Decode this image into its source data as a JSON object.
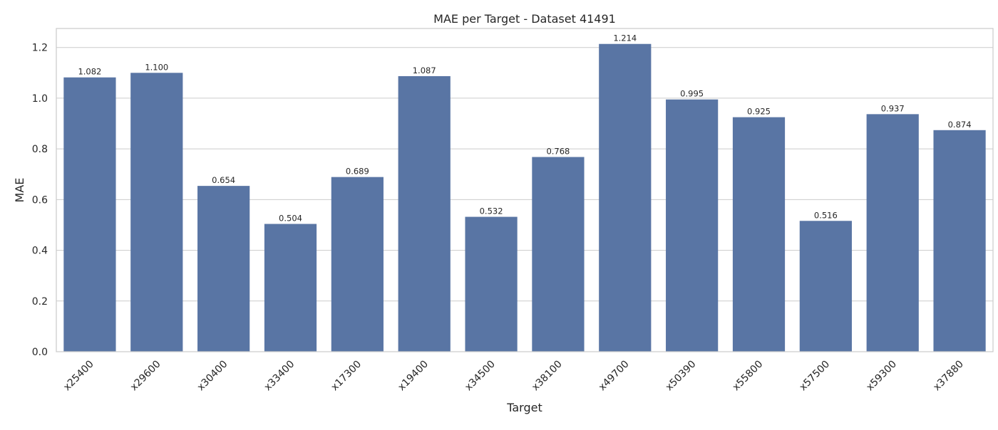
{
  "chart_data": {
    "type": "bar",
    "title": "MAE per Target - Dataset 41491",
    "xlabel": "Target",
    "ylabel": "MAE",
    "categories": [
      "x25400",
      "x29600",
      "x30400",
      "x33400",
      "x17300",
      "x19400",
      "x34500",
      "x38100",
      "x49700",
      "x50390",
      "x55800",
      "x57500",
      "x59300",
      "x37880"
    ],
    "values": [
      1.082,
      1.1,
      0.654,
      0.504,
      0.689,
      1.087,
      0.532,
      0.768,
      1.214,
      0.995,
      0.925,
      0.516,
      0.937,
      0.874
    ],
    "data_labels": [
      "1.082",
      "1.100",
      "0.654",
      "0.504",
      "0.689",
      "1.087",
      "0.532",
      "0.768",
      "1.214",
      "0.995",
      "0.925",
      "0.516",
      "0.937",
      "0.874"
    ],
    "ylim": [
      0,
      1.275
    ],
    "yticks": [
      0.0,
      0.2,
      0.4,
      0.6,
      0.8,
      1.0,
      1.2
    ],
    "ytick_labels": [
      "0.0",
      "0.2",
      "0.4",
      "0.6",
      "0.8",
      "1.0",
      "1.2"
    ],
    "grid": true,
    "colors": {
      "bar": "#5975a4",
      "grid": "#cccccc",
      "axis": "#cccccc",
      "text": "#262626"
    }
  }
}
